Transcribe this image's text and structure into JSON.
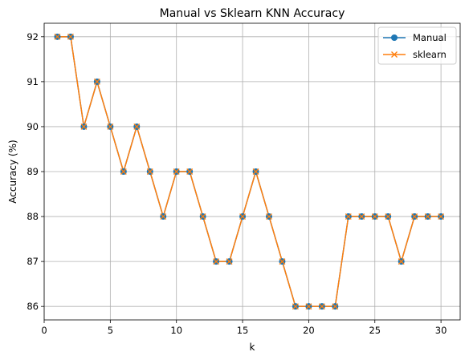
{
  "chart_data": {
    "type": "line",
    "title": "Manual vs Sklearn KNN Accuracy",
    "xlabel": "k",
    "ylabel": "Accuracy (%)",
    "x": [
      1,
      2,
      3,
      4,
      5,
      6,
      7,
      8,
      9,
      10,
      11,
      12,
      13,
      14,
      15,
      16,
      17,
      18,
      19,
      20,
      21,
      22,
      23,
      24,
      25,
      26,
      27,
      28,
      29,
      30
    ],
    "xlim": [
      0,
      31.45
    ],
    "ylim": [
      85.7,
      92.3
    ],
    "xticks": [
      0,
      5,
      10,
      15,
      20,
      25,
      30
    ],
    "yticks": [
      86,
      87,
      88,
      89,
      90,
      91,
      92
    ],
    "grid": true,
    "legend_position": "top-right",
    "series": [
      {
        "name": "Manual",
        "marker": "circle",
        "color": "#1f77b4",
        "values": [
          92,
          92,
          90,
          91,
          90,
          89,
          90,
          89,
          88,
          89,
          89,
          88,
          87,
          87,
          88,
          89,
          88,
          87,
          86,
          86,
          86,
          86,
          88,
          88,
          88,
          88,
          87,
          88,
          88,
          88
        ]
      },
      {
        "name": "sklearn",
        "marker": "x",
        "color": "#ff7f0e",
        "values": [
          92,
          92,
          90,
          91,
          90,
          89,
          90,
          89,
          88,
          89,
          89,
          88,
          87,
          87,
          88,
          89,
          88,
          87,
          86,
          86,
          86,
          86,
          88,
          88,
          88,
          88,
          87,
          88,
          88,
          88
        ]
      }
    ]
  }
}
